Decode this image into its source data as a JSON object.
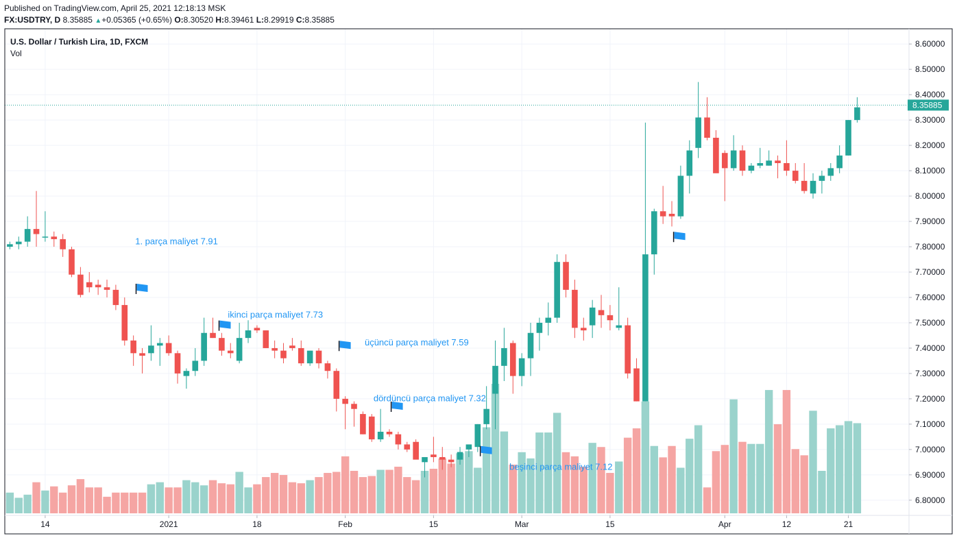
{
  "header": {
    "published": "Published on TradingView.com, April 25, 2021 12:18:13 MSK",
    "symbol": "FX:USDTRY, D",
    "last": "8.35885",
    "change": "+0.05365 (+0.65%)",
    "o_label": "O:",
    "o": "8.30520",
    "h_label": "H:",
    "h": "8.39461",
    "l_label": "L:",
    "l": "8.29919",
    "c_label": "C:",
    "c": "8.35885"
  },
  "legend": {
    "title": "U.S. Dollar / Turkish Lira, 1D, FXCM",
    "volume": "Vol"
  },
  "colors": {
    "up": "#26a69a",
    "down": "#ef5350",
    "vol_up": "#9ad3cc",
    "vol_down": "#f5a5a3",
    "annotation": "#2196f3",
    "grid": "#f0f3fa"
  },
  "chart_data": {
    "type": "candlestick",
    "y_ticks": [
      "6.80000",
      "6.90000",
      "7.00000",
      "7.10000",
      "7.20000",
      "7.30000",
      "7.40000",
      "7.50000",
      "7.60000",
      "7.70000",
      "7.80000",
      "7.90000",
      "8.00000",
      "8.10000",
      "8.20000",
      "8.30000",
      "8.40000",
      "8.50000",
      "8.60000"
    ],
    "ylim": [
      6.74,
      8.66
    ],
    "x_labels": [
      {
        "label": "14",
        "index": 4
      },
      {
        "label": "2021",
        "index": 18
      },
      {
        "label": "18",
        "index": 28
      },
      {
        "label": "Feb",
        "index": 38
      },
      {
        "label": "15",
        "index": 48
      },
      {
        "label": "Mar",
        "index": 58
      },
      {
        "label": "15",
        "index": 68
      },
      {
        "label": "Apr",
        "index": 81
      },
      {
        "label": "12",
        "index": 88
      },
      {
        "label": "21",
        "index": 95
      }
    ],
    "last_price": 8.35885,
    "last_price_label": "8.35885",
    "candles": [
      [
        7.8,
        7.82,
        7.79,
        7.81,
        2
      ],
      [
        7.81,
        7.84,
        7.79,
        7.82,
        1.5
      ],
      [
        7.82,
        7.92,
        7.8,
        7.87,
        1.8
      ],
      [
        7.87,
        8.02,
        7.8,
        7.85,
        3
      ],
      [
        7.84,
        7.94,
        7.82,
        7.84,
        2.2
      ],
      [
        7.84,
        7.86,
        7.8,
        7.83,
        2.6
      ],
      [
        7.83,
        7.85,
        7.76,
        7.79,
        2
      ],
      [
        7.79,
        7.8,
        7.68,
        7.69,
        2.7
      ],
      [
        7.69,
        7.72,
        7.6,
        7.61,
        3.3
      ],
      [
        7.66,
        7.7,
        7.62,
        7.64,
        2.5
      ],
      [
        7.65,
        7.67,
        7.61,
        7.64,
        2.5
      ],
      [
        7.64,
        7.67,
        7.6,
        7.63,
        1.6
      ],
      [
        7.63,
        7.65,
        7.55,
        7.57,
        2
      ],
      [
        7.57,
        7.6,
        7.41,
        7.43,
        2
      ],
      [
        7.43,
        7.45,
        7.33,
        7.38,
        2
      ],
      [
        7.38,
        7.4,
        7.3,
        7.37,
        2
      ],
      [
        7.38,
        7.49,
        7.35,
        7.41,
        2.8
      ],
      [
        7.41,
        7.44,
        7.33,
        7.42,
        3
      ],
      [
        7.42,
        7.45,
        7.37,
        7.38,
        2.5
      ],
      [
        7.38,
        7.39,
        7.26,
        7.3,
        2.5
      ],
      [
        7.29,
        7.32,
        7.24,
        7.31,
        3.2
      ],
      [
        7.31,
        7.4,
        7.29,
        7.35,
        3
      ],
      [
        7.35,
        7.52,
        7.33,
        7.46,
        2.7
      ],
      [
        7.46,
        7.52,
        7.44,
        7.44,
        3.2
      ],
      [
        7.44,
        7.46,
        7.37,
        7.39,
        2.9
      ],
      [
        7.39,
        7.42,
        7.36,
        7.38,
        2.8
      ],
      [
        7.35,
        7.5,
        7.34,
        7.44,
        4
      ],
      [
        7.44,
        7.51,
        7.42,
        7.47,
        2.5
      ],
      [
        7.48,
        7.49,
        7.46,
        7.47,
        2.8
      ],
      [
        7.47,
        7.47,
        7.4,
        7.4,
        3.5
      ],
      [
        7.4,
        7.43,
        7.36,
        7.39,
        3.9
      ],
      [
        7.39,
        7.42,
        7.34,
        7.36,
        3.7
      ],
      [
        7.41,
        7.44,
        7.39,
        7.4,
        3
      ],
      [
        7.4,
        7.43,
        7.33,
        7.34,
        2.9
      ],
      [
        7.34,
        7.39,
        7.33,
        7.39,
        3.2
      ],
      [
        7.39,
        7.4,
        7.32,
        7.34,
        3.5
      ],
      [
        7.34,
        7.35,
        7.28,
        7.31,
        3.9
      ],
      [
        7.31,
        7.32,
        7.15,
        7.2,
        4
      ],
      [
        7.2,
        7.21,
        7.08,
        7.18,
        5.5
      ],
      [
        7.18,
        7.19,
        7.09,
        7.16,
        4.1
      ],
      [
        7.14,
        7.15,
        7.06,
        7.06,
        3.5
      ],
      [
        7.13,
        7.14,
        7.03,
        7.04,
        3.6
      ],
      [
        7.04,
        7.16,
        7.03,
        7.07,
        4.2
      ],
      [
        7.07,
        7.08,
        7.05,
        7.06,
        4.2
      ],
      [
        7.06,
        7.07,
        7.0,
        7.02,
        4.5
      ],
      [
        7.02,
        7.03,
        6.99,
        7.0,
        3.5
      ],
      [
        7.03,
        7.04,
        6.97,
        6.96,
        3.2
      ],
      [
        6.95,
        6.96,
        6.89,
        6.97,
        4.1
      ],
      [
        6.98,
        7.05,
        6.95,
        6.97,
        4.3
      ],
      [
        6.97,
        7.01,
        6.92,
        6.96,
        5.3
      ],
      [
        6.96,
        6.98,
        6.93,
        6.95,
        4.8
      ],
      [
        6.96,
        7.01,
        6.94,
        6.99,
        5.8
      ],
      [
        7.0,
        7.02,
        6.97,
        7.02,
        6
      ],
      [
        7.01,
        7.1,
        6.99,
        7.1,
        4.4
      ],
      [
        7.1,
        7.25,
        7.08,
        7.16,
        8.3
      ],
      [
        7.22,
        7.43,
        7.08,
        7.33,
        12.5
      ],
      [
        7.33,
        7.48,
        7.27,
        7.4,
        7.9
      ],
      [
        7.42,
        7.43,
        7.22,
        7.29,
        4.7
      ],
      [
        7.29,
        7.38,
        7.25,
        7.36,
        5.9
      ],
      [
        7.36,
        7.5,
        7.29,
        7.46,
        5.3
      ],
      [
        7.46,
        7.52,
        7.39,
        7.5,
        7.8
      ],
      [
        7.5,
        7.58,
        7.45,
        7.52,
        7.8
      ],
      [
        7.52,
        7.77,
        7.5,
        7.74,
        9.7
      ],
      [
        7.74,
        7.77,
        7.6,
        7.63,
        5.9
      ],
      [
        7.63,
        7.67,
        7.44,
        7.48,
        5.5
      ],
      [
        7.48,
        7.52,
        7.43,
        7.47,
        4.5
      ],
      [
        7.49,
        7.59,
        7.44,
        7.56,
        6.8
      ],
      [
        7.55,
        7.61,
        7.48,
        7.53,
        6.4
      ],
      [
        7.53,
        7.57,
        7.47,
        7.51,
        3.9
      ],
      [
        7.48,
        7.64,
        7.47,
        7.49,
        5
      ],
      [
        7.49,
        7.52,
        7.28,
        7.3,
        7.3
      ],
      [
        7.32,
        7.36,
        7.19,
        7.19,
        8.2
      ],
      [
        7.19,
        8.29,
        7.19,
        7.77,
        10.8
      ],
      [
        7.77,
        7.95,
        7.69,
        7.94,
        6.5
      ],
      [
        7.94,
        8.04,
        7.89,
        7.92,
        5.4
      ],
      [
        7.93,
        7.98,
        7.88,
        7.92,
        6.5
      ],
      [
        7.92,
        8.12,
        7.91,
        8.08,
        4.4
      ],
      [
        8.08,
        8.22,
        8.01,
        8.18,
        7.2
      ],
      [
        8.19,
        8.45,
        8.15,
        8.31,
        8.5
      ],
      [
        8.31,
        8.39,
        8.22,
        8.23,
        2.5
      ],
      [
        8.23,
        8.26,
        8.1,
        8.09,
        6
      ],
      [
        8.17,
        8.18,
        7.98,
        8.11,
        6.6
      ],
      [
        8.11,
        8.24,
        8.1,
        8.18,
        11
      ],
      [
        8.18,
        8.2,
        8.08,
        8.1,
        6.9
      ],
      [
        8.1,
        8.13,
        8.09,
        8.12,
        6.7
      ],
      [
        8.12,
        8.19,
        8.11,
        8.13,
        6.7
      ],
      [
        8.12,
        8.18,
        8.12,
        8.14,
        11.9
      ],
      [
        8.14,
        8.16,
        8.07,
        8.13,
        8.6
      ],
      [
        8.13,
        8.22,
        8.08,
        8.1,
        11.9
      ],
      [
        8.1,
        8.13,
        8.05,
        8.06,
        6.2
      ],
      [
        8.06,
        8.13,
        8.01,
        8.02,
        5.6
      ],
      [
        8.01,
        8.09,
        7.99,
        8.06,
        9.9
      ],
      [
        8.06,
        8.1,
        8.01,
        8.08,
        4.1
      ],
      [
        8.08,
        8.13,
        8.06,
        8.11,
        8.2
      ],
      [
        8.11,
        8.2,
        8.09,
        8.16,
        8.5
      ],
      [
        8.16,
        8.3,
        8.16,
        8.3,
        8.9
      ],
      [
        8.3,
        8.39,
        8.29,
        8.35,
        8.7
      ]
    ],
    "annotations": [
      {
        "text": "1. parça maliyet 7.91",
        "x_index": 14.2,
        "y": 7.81
      },
      {
        "text": "ikinci parça maliyet 7.73",
        "x_index": 24.7,
        "y": 7.52
      },
      {
        "text": "üçüncü parça maliyet 7.59",
        "x_index": 40.2,
        "y": 7.41
      },
      {
        "text": "dördüncü parça maliyet 7.32",
        "x_index": 41.2,
        "y": 7.19
      },
      {
        "text": "beşinci parça maliyet 7.12",
        "x_index": 56.6,
        "y": 6.92
      }
    ],
    "flags": [
      {
        "x_index": 14.3,
        "y": 7.635
      },
      {
        "x_index": 23.7,
        "y": 7.49
      },
      {
        "x_index": 37.3,
        "y": 7.41
      },
      {
        "x_index": 43.2,
        "y": 7.17
      },
      {
        "x_index": 53.3,
        "y": 6.995
      },
      {
        "x_index": 75.2,
        "y": 7.84
      }
    ]
  }
}
